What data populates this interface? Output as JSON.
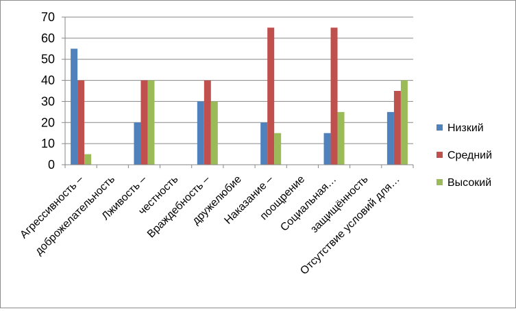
{
  "chart_data": {
    "type": "bar",
    "categories": [
      "Агрессивность –",
      "доброжелательность",
      "Лживость –",
      "честность",
      "Враждебность –",
      "дружелюбие",
      "Наказание –",
      "поощрение",
      "Социальная…",
      "защищённость",
      "Отсутствие условий для…"
    ],
    "series": [
      {
        "name": "Низкий",
        "color": "#4F81BD",
        "values": [
          55,
          null,
          20,
          null,
          30,
          null,
          20,
          null,
          15,
          null,
          25
        ]
      },
      {
        "name": "Средний",
        "color": "#C0504D",
        "values": [
          40,
          null,
          40,
          null,
          40,
          null,
          65,
          null,
          65,
          null,
          35
        ]
      },
      {
        "name": "Высокий",
        "color": "#9BBB59",
        "values": [
          5,
          null,
          40,
          null,
          30,
          null,
          15,
          null,
          25,
          null,
          40
        ]
      }
    ],
    "yticks": [
      0,
      10,
      20,
      30,
      40,
      50,
      60,
      70
    ],
    "ylim": [
      0,
      70
    ],
    "grid": true,
    "legend_position": "right"
  }
}
